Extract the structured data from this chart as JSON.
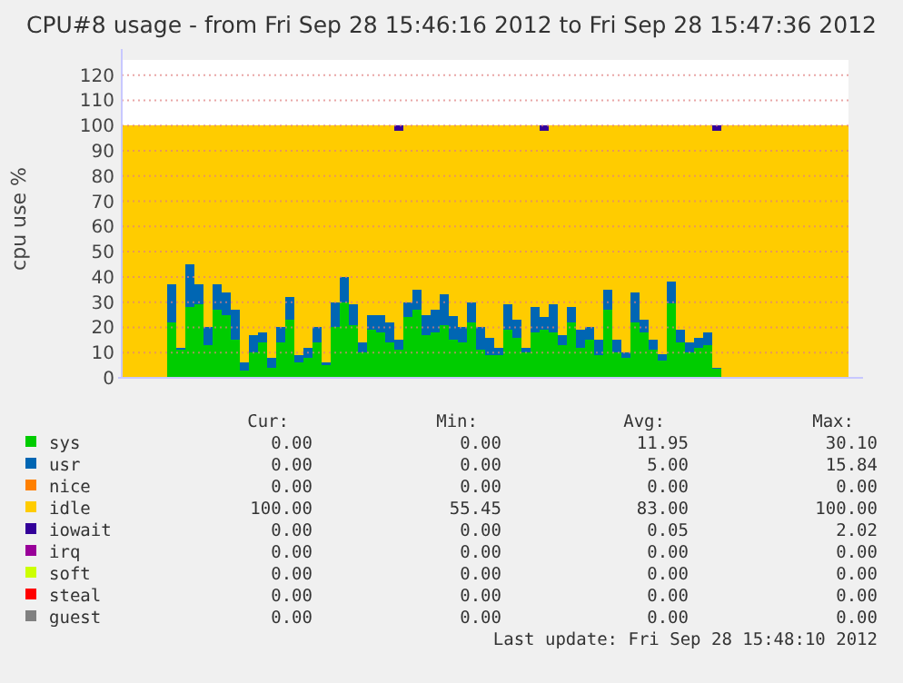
{
  "chart_data": {
    "type": "bar",
    "stacked": true,
    "title": "CPU#8 usage - from Fri Sep 28 15:46:16 2012 to Fri Sep 28 15:47:36 2012",
    "ylabel": "cpu use %",
    "categories": [
      null,
      null,
      null,
      null,
      null,
      null,
      null,
      null,
      null,
      null,
      null,
      null,
      null,
      null,
      null,
      null,
      null,
      null,
      null,
      null,
      null,
      null,
      null,
      null,
      null,
      null,
      null,
      null,
      null,
      null,
      null,
      null,
      null,
      null,
      null,
      null,
      null,
      null,
      null,
      null,
      null,
      null,
      null,
      null,
      null,
      null,
      null,
      null,
      null,
      null,
      null,
      null,
      null,
      null,
      null,
      null,
      null,
      null,
      null,
      null,
      null,
      null,
      null,
      null,
      null,
      null,
      null,
      null,
      null,
      null,
      null,
      null,
      null,
      null,
      null,
      null,
      null,
      null,
      null,
      null
    ],
    "ylim": [
      0,
      126
    ],
    "yticks": [
      0,
      10,
      20,
      30,
      40,
      50,
      60,
      70,
      80,
      90,
      100,
      110,
      120
    ],
    "grid": "y",
    "legend": "bottom",
    "tick_labels": "y",
    "series": [
      {
        "name": "sys",
        "color": "#00cc00",
        "values": [
          0,
          0,
          0,
          0,
          0,
          22,
          11,
          28,
          29,
          13,
          27,
          25,
          15,
          3,
          10,
          14,
          4,
          14,
          23,
          6,
          8,
          14,
          5,
          20,
          30,
          21,
          10,
          19,
          18,
          14,
          11,
          24,
          27,
          17,
          18,
          21,
          15,
          14,
          22,
          11,
          9,
          9,
          19,
          16,
          10,
          18,
          19,
          18,
          13,
          22,
          12,
          15,
          9,
          27,
          10,
          8,
          22,
          18,
          11,
          7,
          29.5,
          14,
          10,
          12,
          13,
          3.5,
          0,
          0,
          0,
          0,
          0,
          0,
          0,
          0,
          0,
          0,
          0,
          0,
          0,
          0
        ]
      },
      {
        "name": "usr",
        "color": "#0066b3",
        "values": [
          0,
          0,
          0,
          0,
          0,
          15,
          1,
          17,
          8,
          7,
          10,
          9,
          12,
          3,
          7,
          4,
          4,
          6,
          9,
          3,
          4,
          6,
          1,
          10,
          10,
          8,
          4,
          6,
          7,
          8,
          4,
          6,
          8,
          8,
          9,
          12,
          9.5,
          6,
          8,
          9,
          7,
          3,
          10,
          7,
          2,
          10,
          5,
          11,
          4,
          6,
          7,
          5,
          6,
          8,
          5,
          2,
          12,
          5,
          4,
          2.5,
          8.5,
          5,
          4,
          4,
          5,
          0.5,
          0,
          0,
          0,
          0,
          0,
          0,
          0,
          0,
          0,
          0,
          0,
          0,
          0,
          0
        ]
      },
      {
        "name": "nice",
        "color": "#ff8000",
        "values": [
          0,
          0,
          0,
          0,
          0,
          0,
          0,
          0,
          0,
          0,
          0,
          0,
          0,
          0,
          0,
          0,
          0,
          0,
          0,
          0,
          0,
          0,
          0,
          0,
          0,
          0,
          0,
          0,
          0,
          0,
          0,
          0,
          0,
          0,
          0,
          0,
          0,
          0,
          0,
          0,
          0,
          0,
          0,
          0,
          0,
          0,
          0,
          0,
          0,
          0,
          0,
          0,
          0,
          0,
          0,
          0,
          0,
          0,
          0,
          0,
          0,
          0,
          0,
          0,
          0,
          0,
          0,
          0,
          0,
          0,
          0,
          0,
          0,
          0,
          0,
          0,
          0,
          0,
          0,
          0
        ]
      },
      {
        "name": "idle",
        "color": "#ffcc00",
        "values": [
          100,
          100,
          100,
          100,
          100,
          63,
          88,
          55,
          63,
          80,
          63,
          66,
          73,
          94,
          83,
          82,
          92,
          80,
          68,
          91,
          88,
          80,
          94,
          70,
          60,
          71,
          86,
          75,
          75,
          78,
          83,
          70,
          65,
          75,
          73,
          67,
          75.5,
          80,
          70,
          80,
          84,
          88,
          71,
          77,
          88,
          72,
          74,
          71,
          83,
          72,
          81,
          80,
          85,
          65,
          85,
          90,
          66,
          77,
          85,
          90.5,
          62,
          81,
          86,
          84,
          82,
          94,
          100,
          100,
          100,
          100,
          100,
          100,
          100,
          100,
          100,
          100,
          100,
          100,
          100,
          100
        ]
      },
      {
        "name": "iowait",
        "color": "#330099",
        "values": [
          0,
          0,
          0,
          0,
          0,
          0,
          0,
          0,
          0,
          0,
          0,
          0,
          0,
          0,
          0,
          0,
          0,
          0,
          0,
          0,
          0,
          0,
          0,
          0,
          0,
          0,
          0,
          0,
          0,
          0,
          2,
          0,
          0,
          0,
          0,
          0,
          0,
          0,
          0,
          0,
          0,
          0,
          0,
          0,
          0,
          0,
          2,
          0,
          0,
          0,
          0,
          0,
          0,
          0,
          0,
          0,
          0,
          0,
          0,
          0,
          0,
          0,
          0,
          0,
          0,
          2,
          0,
          0,
          0,
          0,
          0,
          0,
          0,
          0,
          0,
          0,
          0,
          0,
          0,
          0
        ]
      },
      {
        "name": "irq",
        "color": "#990099",
        "values": [
          0,
          0,
          0,
          0,
          0,
          0,
          0,
          0,
          0,
          0,
          0,
          0,
          0,
          0,
          0,
          0,
          0,
          0,
          0,
          0,
          0,
          0,
          0,
          0,
          0,
          0,
          0,
          0,
          0,
          0,
          0,
          0,
          0,
          0,
          0,
          0,
          0,
          0,
          0,
          0,
          0,
          0,
          0,
          0,
          0,
          0,
          0,
          0,
          0,
          0,
          0,
          0,
          0,
          0,
          0,
          0,
          0,
          0,
          0,
          0,
          0,
          0,
          0,
          0,
          0,
          0,
          0,
          0,
          0,
          0,
          0,
          0,
          0,
          0,
          0,
          0,
          0,
          0,
          0,
          0
        ]
      },
      {
        "name": "soft",
        "color": "#ccff00",
        "values": [
          0,
          0,
          0,
          0,
          0,
          0,
          0,
          0,
          0,
          0,
          0,
          0,
          0,
          0,
          0,
          0,
          0,
          0,
          0,
          0,
          0,
          0,
          0,
          0,
          0,
          0,
          0,
          0,
          0,
          0,
          0,
          0,
          0,
          0,
          0,
          0,
          0,
          0,
          0,
          0,
          0,
          0,
          0,
          0,
          0,
          0,
          0,
          0,
          0,
          0,
          0,
          0,
          0,
          0,
          0,
          0,
          0,
          0,
          0,
          0,
          0,
          0,
          0,
          0,
          0,
          0,
          0,
          0,
          0,
          0,
          0,
          0,
          0,
          0,
          0,
          0,
          0,
          0,
          0,
          0
        ]
      },
      {
        "name": "steal",
        "color": "#ff0000",
        "values": [
          0,
          0,
          0,
          0,
          0,
          0,
          0,
          0,
          0,
          0,
          0,
          0,
          0,
          0,
          0,
          0,
          0,
          0,
          0,
          0,
          0,
          0,
          0,
          0,
          0,
          0,
          0,
          0,
          0,
          0,
          0,
          0,
          0,
          0,
          0,
          0,
          0,
          0,
          0,
          0,
          0,
          0,
          0,
          0,
          0,
          0,
          0,
          0,
          0,
          0,
          0,
          0,
          0,
          0,
          0,
          0,
          0,
          0,
          0,
          0,
          0,
          0,
          0,
          0,
          0,
          0,
          0,
          0,
          0,
          0,
          0,
          0,
          0,
          0,
          0,
          0,
          0,
          0,
          0,
          0
        ]
      },
      {
        "name": "guest",
        "color": "#808080",
        "values": [
          0,
          0,
          0,
          0,
          0,
          0,
          0,
          0,
          0,
          0,
          0,
          0,
          0,
          0,
          0,
          0,
          0,
          0,
          0,
          0,
          0,
          0,
          0,
          0,
          0,
          0,
          0,
          0,
          0,
          0,
          0,
          0,
          0,
          0,
          0,
          0,
          0,
          0,
          0,
          0,
          0,
          0,
          0,
          0,
          0,
          0,
          0,
          0,
          0,
          0,
          0,
          0,
          0,
          0,
          0,
          0,
          0,
          0,
          0,
          0,
          0,
          0,
          0,
          0,
          0,
          0,
          0,
          0,
          0,
          0,
          0,
          0,
          0,
          0,
          0,
          0,
          0,
          0,
          0,
          0
        ]
      }
    ],
    "annotations": [
      "Cur:",
      "Min:",
      "Avg:",
      "Max:",
      "0.00",
      "0.00",
      "11.95",
      "30.10",
      "0.00",
      "0.00",
      "5.00",
      "15.84",
      "0.00",
      "0.00",
      "0.00",
      "0.00",
      "100.00",
      "55.45",
      "83.00",
      "100.00",
      "0.00",
      "0.00",
      "0.05",
      "2.02",
      "0.00",
      "0.00",
      "0.00",
      "0.00",
      "0.00",
      "0.00",
      "0.00",
      "0.00",
      "0.00",
      "0.00",
      "0.00",
      "0.00",
      "0.00",
      "0.00",
      "0.00",
      "0.00",
      "Last update: Fri Sep 28 15:48:10 2012"
    ]
  }
}
